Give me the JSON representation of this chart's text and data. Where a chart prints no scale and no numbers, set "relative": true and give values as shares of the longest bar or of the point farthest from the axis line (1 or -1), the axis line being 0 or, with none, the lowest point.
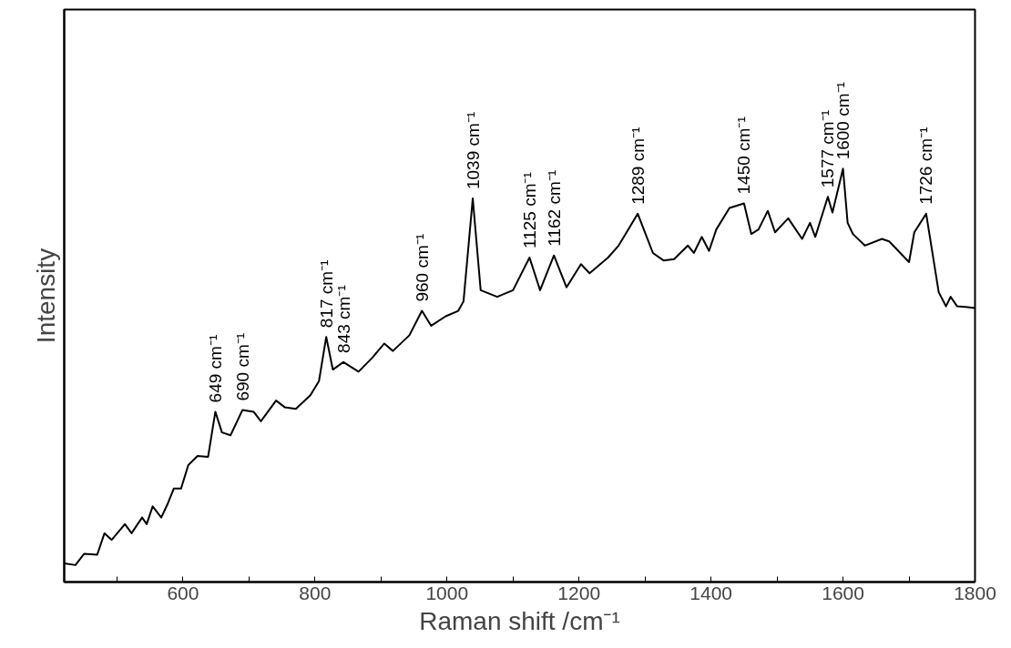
{
  "chart_data": {
    "type": "line",
    "xlabel": "Raman shift /cm⁻¹",
    "ylabel": "Intensity",
    "relative": true,
    "color": "#000000",
    "line_style": "solid",
    "marker": "none",
    "grid": false,
    "xlim": [
      420,
      1800
    ],
    "xticks": [
      {
        "value": 500,
        "label": null
      },
      600,
      {
        "value": 700,
        "label": null
      },
      800,
      {
        "value": 900,
        "label": null
      },
      1000,
      {
        "value": 1100,
        "label": null
      },
      1200,
      {
        "value": 1300,
        "label": null
      },
      1400,
      {
        "value": 1500,
        "label": null
      },
      1600,
      {
        "value": 1700,
        "label": null
      },
      1800
    ],
    "x": [
      420,
      437,
      450,
      470,
      481,
      492,
      512,
      522,
      538,
      545,
      554,
      567,
      577,
      586,
      597,
      608,
      622,
      638,
      649,
      659,
      672,
      690,
      707,
      718,
      741,
      754,
      771,
      793,
      806,
      817,
      827,
      843,
      866,
      887,
      905,
      918,
      943,
      962,
      976,
      998,
      1017,
      1025,
      1039,
      1051,
      1076,
      1100,
      1125,
      1141,
      1162,
      1181,
      1203,
      1216,
      1244,
      1260,
      1289,
      1312,
      1328,
      1344,
      1365,
      1374,
      1386,
      1397,
      1408,
      1428,
      1450,
      1461,
      1472,
      1486,
      1497,
      1517,
      1538,
      1550,
      1558,
      1577,
      1584,
      1600,
      1607,
      1615,
      1633,
      1659,
      1670,
      1700,
      1708,
      1726,
      1745,
      1756,
      1763,
      1773,
      1789,
      1800
    ],
    "values": [
      0.045,
      0.041,
      0.068,
      0.066,
      0.118,
      0.102,
      0.14,
      0.118,
      0.156,
      0.14,
      0.183,
      0.156,
      0.19,
      0.226,
      0.226,
      0.283,
      0.305,
      0.303,
      0.412,
      0.362,
      0.355,
      0.416,
      0.412,
      0.389,
      0.439,
      0.423,
      0.419,
      0.452,
      0.486,
      0.593,
      0.514,
      0.532,
      0.509,
      0.543,
      0.577,
      0.559,
      0.597,
      0.656,
      0.62,
      0.643,
      0.656,
      0.679,
      0.928,
      0.706,
      0.69,
      0.706,
      0.785,
      0.706,
      0.79,
      0.713,
      0.769,
      0.747,
      0.785,
      0.814,
      0.891,
      0.796,
      0.778,
      0.781,
      0.814,
      0.796,
      0.835,
      0.801,
      0.853,
      0.905,
      0.916,
      0.842,
      0.853,
      0.898,
      0.846,
      0.88,
      0.83,
      0.869,
      0.835,
      0.932,
      0.894,
      1.0,
      0.869,
      0.842,
      0.814,
      0.83,
      0.824,
      0.774,
      0.846,
      0.891,
      0.701,
      0.667,
      0.69,
      0.667,
      0.665,
      0.663
    ],
    "annotations": [
      {
        "text": "649 cm⁻¹",
        "x": 649,
        "y": 0.412
      },
      {
        "text": "690 cm⁻¹",
        "x": 690,
        "y": 0.416
      },
      {
        "text": "817 cm⁻¹",
        "x": 817,
        "y": 0.593
      },
      {
        "text": "843 cm⁻¹",
        "x": 843,
        "y": 0.532
      },
      {
        "text": "960 cm⁻¹",
        "x": 962,
        "y": 0.656
      },
      {
        "text": "1039 cm⁻¹",
        "x": 1039,
        "y": 0.928
      },
      {
        "text": "1125 cm⁻¹",
        "x": 1125,
        "y": 0.785
      },
      {
        "text": "1162 cm⁻¹",
        "x": 1162,
        "y": 0.79
      },
      {
        "text": "1289 cm⁻¹",
        "x": 1289,
        "y": 0.891
      },
      {
        "text": "1450 cm⁻¹",
        "x": 1450,
        "y": 0.916
      },
      {
        "text": "1577 cm⁻¹",
        "x": 1577,
        "y": 0.932
      },
      {
        "text": "1600 cm⁻¹",
        "x": 1600,
        "y": 1.0
      },
      {
        "text": "1726 cm⁻¹",
        "x": 1726,
        "y": 0.891
      }
    ]
  }
}
